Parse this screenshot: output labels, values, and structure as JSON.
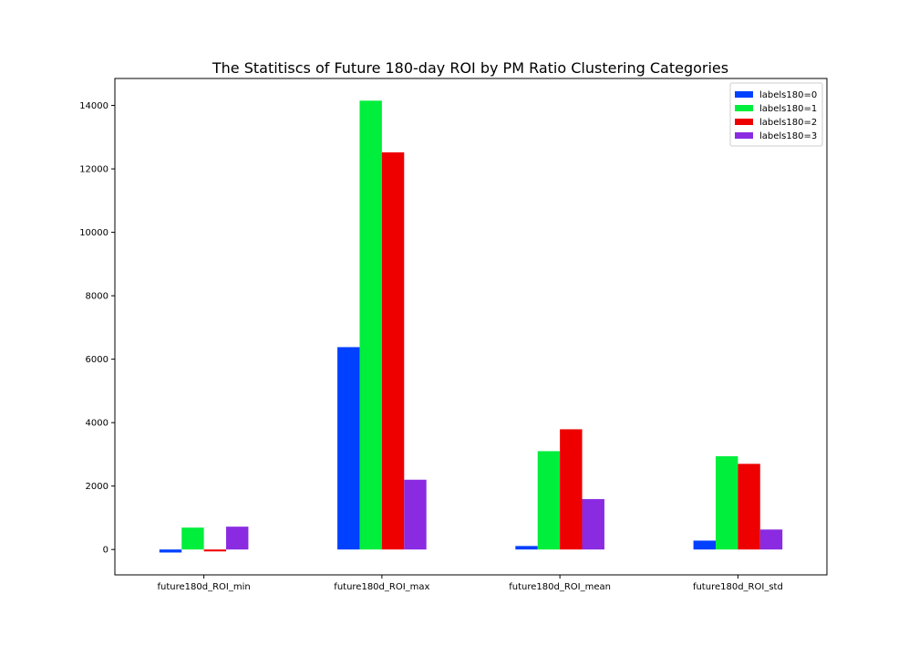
{
  "chart_data": {
    "type": "bar",
    "title": "The Statitiscs of Future 180-day ROI by PM Ratio Clustering Categories",
    "xlabel": "",
    "ylabel": "",
    "categories": [
      "future180d_ROI_min",
      "future180d_ROI_max",
      "future180d_ROI_mean",
      "future180d_ROI_std"
    ],
    "series": [
      {
        "name": "labels180=0",
        "color": "#0040ff",
        "values": [
          -95,
          6380,
          110,
          280
        ]
      },
      {
        "name": "labels180=1",
        "color": "#00ee3c",
        "values": [
          690,
          14150,
          3100,
          2940
        ]
      },
      {
        "name": "labels180=2",
        "color": "#ee0000",
        "values": [
          -60,
          12520,
          3790,
          2700
        ]
      },
      {
        "name": "labels180=3",
        "color": "#8a2be2",
        "values": [
          720,
          2200,
          1590,
          630
        ]
      }
    ],
    "ylim": [
      -800,
      14850
    ],
    "yticks": [
      0,
      2000,
      4000,
      6000,
      8000,
      10000,
      12000,
      14000
    ],
    "legend_position": "top-right",
    "grid": false
  }
}
